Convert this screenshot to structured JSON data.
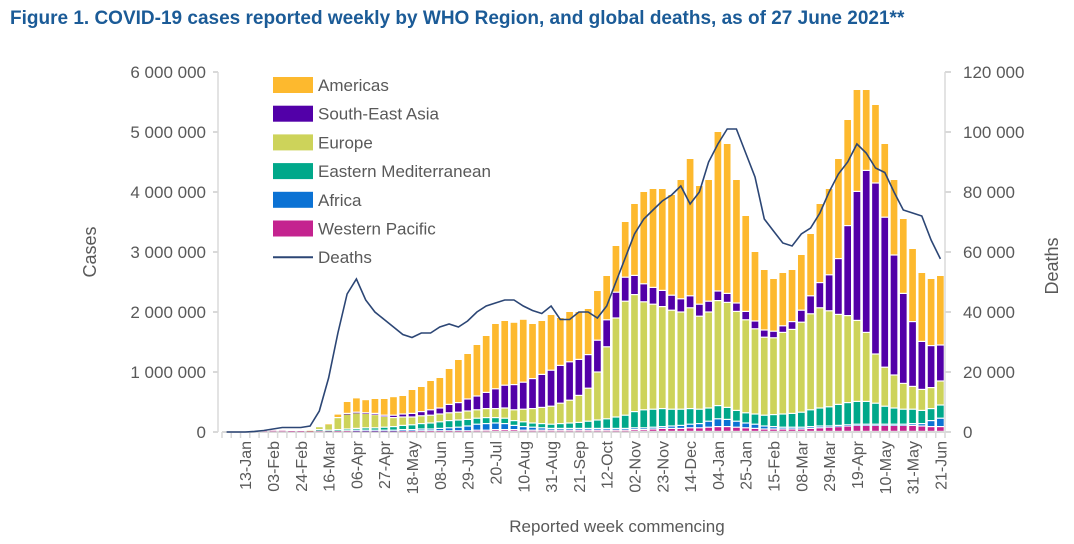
{
  "chart_data": {
    "type": "bar",
    "stacked": true,
    "title": "Figure 1. COVID-19 cases reported weekly by WHO Region, and global deaths, as of 27 June 2021**",
    "xlabel": "Reported week commencing",
    "ylabel": "Cases",
    "y2label": "Deaths",
    "ylim": [
      0,
      6000000
    ],
    "y2lim": [
      0,
      120000
    ],
    "yticks": [
      "0",
      "1 000 000",
      "2 000 000",
      "3 000 000",
      "4 000 000",
      "5 000 000",
      "6 000 000"
    ],
    "y2ticks": [
      "0",
      "20 000",
      "40 000",
      "60 000",
      "80 000",
      "100 000",
      "120 000"
    ],
    "week_count": 78,
    "xtick_labels": [
      "13-Jan",
      "03-Feb",
      "24-Feb",
      "16-Mar",
      "06-Apr",
      "27-Apr",
      "18-May",
      "08-Jun",
      "29-Jun",
      "20-Jul",
      "10-Aug",
      "31-Aug",
      "21-Sep",
      "12-Oct",
      "02-Nov",
      "23-Nov",
      "14-Dec",
      "04-Jan",
      "25-Jan",
      "15-Feb",
      "08-Mar",
      "29-Mar",
      "19-Apr",
      "10-May",
      "31-May",
      "21-Jun"
    ],
    "xtick_first_index": 2,
    "xtick_step": 3,
    "legend_position": "top-left",
    "units_note": "case series values in millions, deaths in thousands",
    "series": [
      {
        "name": "Western Pacific",
        "color": "#c4238f",
        "values": [
          0,
          0,
          0,
          0.01,
          0.02,
          0.02,
          0.02,
          0.01,
          0.01,
          0.01,
          0.02,
          0.01,
          0.01,
          0.01,
          0.01,
          0.01,
          0.01,
          0.01,
          0.01,
          0.01,
          0.01,
          0.01,
          0.01,
          0.01,
          0.01,
          0.01,
          0.01,
          0.02,
          0.02,
          0.03,
          0.03,
          0.03,
          0.02,
          0.02,
          0.02,
          0.02,
          0.02,
          0.02,
          0.02,
          0.02,
          0.02,
          0.02,
          0.02,
          0.02,
          0.03,
          0.03,
          0.04,
          0.05,
          0.05,
          0.05,
          0.06,
          0.06,
          0.07,
          0.08,
          0.08,
          0.07,
          0.06,
          0.05,
          0.04,
          0.04,
          0.04,
          0.04,
          0.04,
          0.05,
          0.06,
          0.07,
          0.08,
          0.09,
          0.1,
          0.1,
          0.1,
          0.1,
          0.1,
          0.1,
          0.1,
          0.09,
          0.08,
          0.08
        ]
      },
      {
        "name": "Africa",
        "color": "#0b72d4",
        "values": [
          0,
          0,
          0,
          0,
          0,
          0,
          0,
          0,
          0,
          0,
          0,
          0,
          0,
          0,
          0.01,
          0.01,
          0.01,
          0.01,
          0.01,
          0.02,
          0.02,
          0.03,
          0.03,
          0.04,
          0.05,
          0.06,
          0.08,
          0.1,
          0.11,
          0.11,
          0.1,
          0.07,
          0.06,
          0.05,
          0.04,
          0.03,
          0.03,
          0.03,
          0.03,
          0.03,
          0.03,
          0.03,
          0.03,
          0.03,
          0.03,
          0.03,
          0.03,
          0.03,
          0.04,
          0.05,
          0.06,
          0.07,
          0.1,
          0.13,
          0.12,
          0.1,
          0.08,
          0.07,
          0.05,
          0.04,
          0.03,
          0.03,
          0.03,
          0.03,
          0.03,
          0.02,
          0.02,
          0.02,
          0.02,
          0.02,
          0.02,
          0.02,
          0.02,
          0.02,
          0.03,
          0.04,
          0.1,
          0.14
        ]
      },
      {
        "name": "Eastern Mediterranean",
        "color": "#00a88a",
        "values": [
          0,
          0,
          0,
          0,
          0,
          0,
          0,
          0,
          0,
          0,
          0.01,
          0.01,
          0.02,
          0.03,
          0.03,
          0.04,
          0.04,
          0.05,
          0.06,
          0.07,
          0.08,
          0.09,
          0.1,
          0.11,
          0.12,
          0.12,
          0.11,
          0.1,
          0.1,
          0.09,
          0.09,
          0.08,
          0.08,
          0.07,
          0.07,
          0.07,
          0.08,
          0.09,
          0.1,
          0.12,
          0.14,
          0.16,
          0.19,
          0.22,
          0.27,
          0.3,
          0.3,
          0.3,
          0.28,
          0.27,
          0.26,
          0.24,
          0.22,
          0.22,
          0.2,
          0.18,
          0.17,
          0.17,
          0.18,
          0.2,
          0.22,
          0.23,
          0.25,
          0.28,
          0.3,
          0.32,
          0.35,
          0.37,
          0.38,
          0.38,
          0.35,
          0.3,
          0.27,
          0.25,
          0.24,
          0.22,
          0.2,
          0.22
        ]
      },
      {
        "name": "Europe",
        "color": "#cdd35a",
        "values": [
          0,
          0,
          0,
          0,
          0,
          0,
          0,
          0,
          0,
          0.01,
          0.05,
          0.1,
          0.2,
          0.25,
          0.26,
          0.24,
          0.22,
          0.18,
          0.15,
          0.14,
          0.13,
          0.13,
          0.13,
          0.13,
          0.13,
          0.13,
          0.14,
          0.14,
          0.15,
          0.15,
          0.17,
          0.18,
          0.21,
          0.24,
          0.27,
          0.3,
          0.34,
          0.38,
          0.45,
          0.55,
          0.8,
          1.2,
          1.65,
          1.9,
          1.95,
          1.8,
          1.75,
          1.7,
          1.65,
          1.62,
          1.68,
          1.55,
          1.6,
          1.75,
          1.75,
          1.65,
          1.55,
          1.42,
          1.3,
          1.28,
          1.36,
          1.4,
          1.5,
          1.6,
          1.67,
          1.6,
          1.5,
          1.45,
          1.35,
          1.15,
          0.82,
          0.65,
          0.55,
          0.43,
          0.38,
          0.35,
          0.35,
          0.4
        ]
      },
      {
        "name": "South-East Asia",
        "color": "#5200a8",
        "values": [
          0,
          0,
          0,
          0,
          0,
          0,
          0,
          0,
          0,
          0,
          0,
          0,
          0,
          0.01,
          0.01,
          0.01,
          0.02,
          0.02,
          0.04,
          0.05,
          0.06,
          0.07,
          0.09,
          0.1,
          0.14,
          0.16,
          0.2,
          0.23,
          0.27,
          0.33,
          0.38,
          0.42,
          0.45,
          0.5,
          0.55,
          0.6,
          0.63,
          0.64,
          0.6,
          0.56,
          0.53,
          0.45,
          0.43,
          0.4,
          0.32,
          0.3,
          0.28,
          0.27,
          0.25,
          0.22,
          0.2,
          0.2,
          0.18,
          0.16,
          0.15,
          0.14,
          0.14,
          0.13,
          0.12,
          0.11,
          0.11,
          0.13,
          0.2,
          0.3,
          0.42,
          0.6,
          0.93,
          1.5,
          2.15,
          2.7,
          2.85,
          2.5,
          2.0,
          1.5,
          1.08,
          0.8,
          0.7,
          0.6
        ]
      },
      {
        "name": "Americas",
        "color": "#fdb92e",
        "values": [
          0,
          0,
          0,
          0,
          0,
          0,
          0,
          0,
          0,
          0,
          0,
          0.01,
          0.06,
          0.2,
          0.24,
          0.22,
          0.25,
          0.28,
          0.31,
          0.31,
          0.4,
          0.42,
          0.49,
          0.51,
          0.6,
          0.72,
          0.76,
          0.86,
          0.95,
          1.09,
          1.08,
          1.04,
          1.05,
          0.92,
          0.9,
          0.93,
          0.8,
          0.84,
          0.8,
          0.77,
          0.83,
          0.74,
          0.78,
          0.93,
          1.2,
          1.54,
          1.65,
          1.7,
          1.68,
          1.99,
          2.29,
          1.98,
          2.03,
          2.66,
          2.5,
          2.06,
          1.6,
          1.16,
          1.01,
          0.88,
          0.89,
          0.87,
          0.93,
          1.04,
          1.32,
          1.44,
          1.67,
          1.77,
          1.7,
          1.35,
          1.31,
          1.23,
          1.26,
          1.25,
          1.22,
          1.15,
          1.12,
          1.16
        ]
      }
    ],
    "line_series": {
      "name": "Deaths",
      "color": "#2c4675",
      "axis": "right",
      "values": [
        0,
        0,
        0,
        0.2,
        0.5,
        1,
        1.5,
        1.5,
        1.5,
        2,
        7,
        18,
        33,
        46,
        51,
        44,
        40,
        37.5,
        35,
        32.5,
        31.5,
        33,
        33,
        35,
        36,
        35,
        37,
        40,
        42,
        43,
        44,
        44,
        42,
        40.5,
        39.5,
        42,
        37.5,
        37.5,
        40,
        40,
        38,
        42,
        50,
        58,
        66,
        71,
        74,
        77,
        79,
        82,
        76,
        80,
        90,
        96,
        101,
        101,
        93,
        85,
        71,
        67,
        63,
        62,
        66,
        68,
        73,
        80,
        86,
        90,
        96,
        93,
        88,
        86.5,
        80,
        74,
        73,
        72,
        64,
        57.7
      ]
    }
  }
}
